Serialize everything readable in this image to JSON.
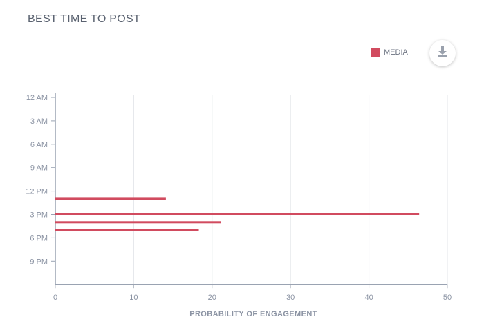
{
  "header": {
    "title": "BEST TIME TO POST"
  },
  "legend": {
    "label": "MEDIA",
    "color": "#d14b5f"
  },
  "download": {
    "icon": "download-icon"
  },
  "chart_data": {
    "type": "bar",
    "orientation": "horizontal",
    "title": "BEST TIME TO POST",
    "xlabel": "PROBABILITY OF ENGAGEMENT",
    "ylabel": "",
    "xlim": [
      0,
      50
    ],
    "xticks": [
      0,
      10,
      20,
      30,
      40,
      50
    ],
    "ylim_hours": [
      0,
      24
    ],
    "yticks": [
      {
        "hour": 0,
        "label": "12 AM"
      },
      {
        "hour": 3,
        "label": "3 AM"
      },
      {
        "hour": 6,
        "label": "6 AM"
      },
      {
        "hour": 9,
        "label": "9 AM"
      },
      {
        "hour": 12,
        "label": "12 PM"
      },
      {
        "hour": 15,
        "label": "3 PM"
      },
      {
        "hour": 18,
        "label": "6 PM"
      },
      {
        "hour": 21,
        "label": "9 PM"
      }
    ],
    "grid": "vertical",
    "legend_position": "top-right",
    "series": [
      {
        "name": "MEDIA",
        "color": "#d14b5f",
        "points": [
          {
            "hour": 13,
            "value": 14.1
          },
          {
            "hour": 15,
            "value": 46.4
          },
          {
            "hour": 16,
            "value": 21.1
          },
          {
            "hour": 17,
            "value": 18.3
          }
        ]
      }
    ]
  }
}
